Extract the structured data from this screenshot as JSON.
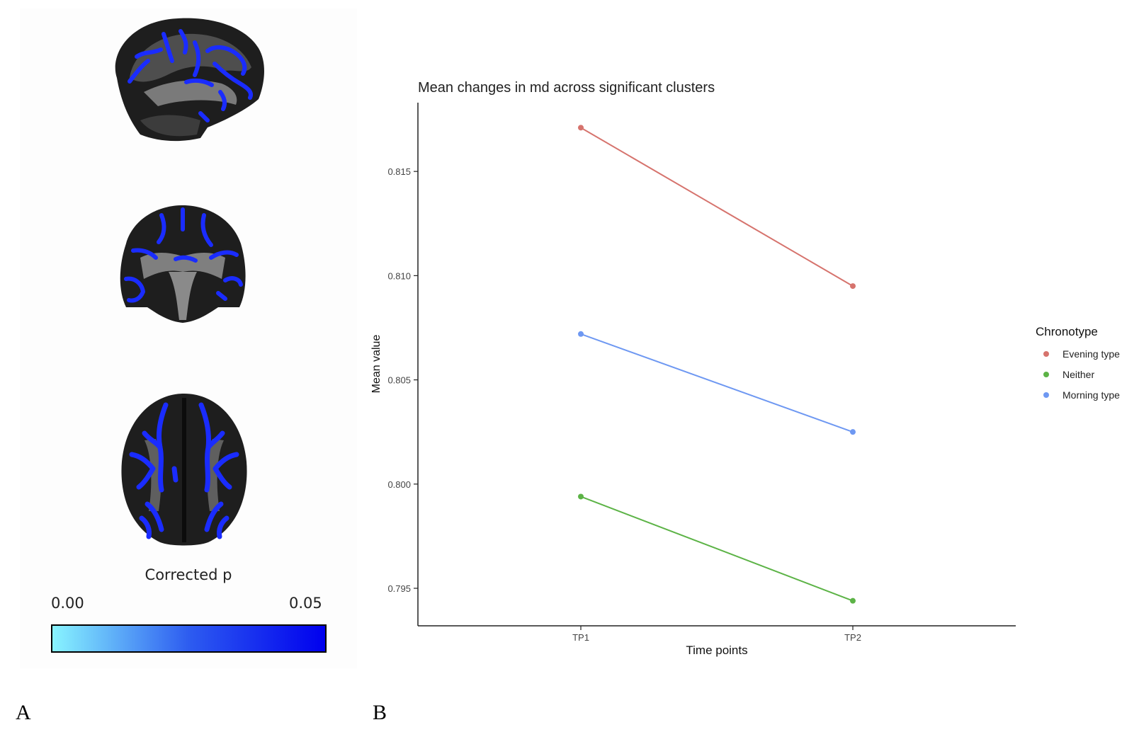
{
  "panel_a": {
    "letter": "A",
    "colorbar": {
      "title": "Corrected p",
      "min_label": "0.00",
      "max_label": "0.05",
      "gradient": [
        "#88f4ff",
        "#2d5cf0",
        "#0000ee"
      ]
    }
  },
  "panel_b": {
    "letter": "B"
  },
  "chart_data": {
    "type": "line",
    "title": "Mean changes in md across significant clusters",
    "xlabel": "Time points",
    "ylabel": "Mean value",
    "categories": [
      "TP1",
      "TP2"
    ],
    "ylim": [
      0.7932,
      0.8183
    ],
    "yticks": [
      0.795,
      0.8,
      0.805,
      0.81,
      0.815
    ],
    "ytick_labels": [
      "0.795",
      "0.800",
      "0.805",
      "0.810",
      "0.815"
    ],
    "grid": false,
    "legend_title": "Chronotype",
    "legend_position": "right",
    "series": [
      {
        "name": "Evening type",
        "color": "#d6736d",
        "values": [
          0.8171,
          0.8095
        ]
      },
      {
        "name": "Neither",
        "color": "#5cb346",
        "values": [
          0.7994,
          0.7944
        ]
      },
      {
        "name": "Morning type",
        "color": "#6e98f2",
        "values": [
          0.8072,
          0.8025
        ]
      }
    ]
  }
}
